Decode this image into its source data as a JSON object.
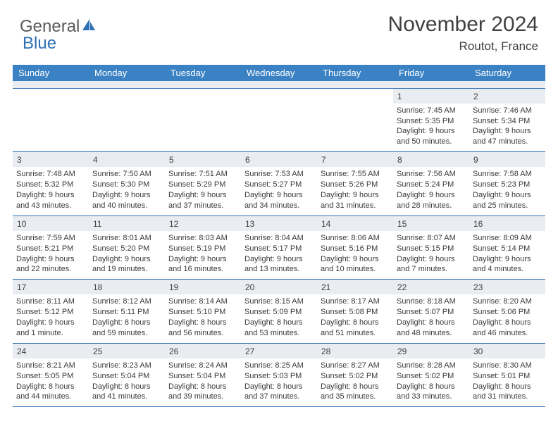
{
  "logo": {
    "text1": "General",
    "text2": "Blue"
  },
  "title": "November 2024",
  "location": "Routot, France",
  "colors": {
    "header_bg": "#3b82c4",
    "header_text": "#ffffff",
    "daynum_bg": "#e9edf1",
    "border": "#2f6fb3",
    "body_text": "#3a3a3a",
    "title_text": "#404040"
  },
  "day_names": [
    "Sunday",
    "Monday",
    "Tuesday",
    "Wednesday",
    "Thursday",
    "Friday",
    "Saturday"
  ],
  "weeks": [
    [
      {
        "n": "",
        "sunrise": "",
        "sunset": "",
        "daylight": ""
      },
      {
        "n": "",
        "sunrise": "",
        "sunset": "",
        "daylight": ""
      },
      {
        "n": "",
        "sunrise": "",
        "sunset": "",
        "daylight": ""
      },
      {
        "n": "",
        "sunrise": "",
        "sunset": "",
        "daylight": ""
      },
      {
        "n": "",
        "sunrise": "",
        "sunset": "",
        "daylight": ""
      },
      {
        "n": "1",
        "sunrise": "Sunrise: 7:45 AM",
        "sunset": "Sunset: 5:35 PM",
        "daylight": "Daylight: 9 hours and 50 minutes."
      },
      {
        "n": "2",
        "sunrise": "Sunrise: 7:46 AM",
        "sunset": "Sunset: 5:34 PM",
        "daylight": "Daylight: 9 hours and 47 minutes."
      }
    ],
    [
      {
        "n": "3",
        "sunrise": "Sunrise: 7:48 AM",
        "sunset": "Sunset: 5:32 PM",
        "daylight": "Daylight: 9 hours and 43 minutes."
      },
      {
        "n": "4",
        "sunrise": "Sunrise: 7:50 AM",
        "sunset": "Sunset: 5:30 PM",
        "daylight": "Daylight: 9 hours and 40 minutes."
      },
      {
        "n": "5",
        "sunrise": "Sunrise: 7:51 AM",
        "sunset": "Sunset: 5:29 PM",
        "daylight": "Daylight: 9 hours and 37 minutes."
      },
      {
        "n": "6",
        "sunrise": "Sunrise: 7:53 AM",
        "sunset": "Sunset: 5:27 PM",
        "daylight": "Daylight: 9 hours and 34 minutes."
      },
      {
        "n": "7",
        "sunrise": "Sunrise: 7:55 AM",
        "sunset": "Sunset: 5:26 PM",
        "daylight": "Daylight: 9 hours and 31 minutes."
      },
      {
        "n": "8",
        "sunrise": "Sunrise: 7:56 AM",
        "sunset": "Sunset: 5:24 PM",
        "daylight": "Daylight: 9 hours and 28 minutes."
      },
      {
        "n": "9",
        "sunrise": "Sunrise: 7:58 AM",
        "sunset": "Sunset: 5:23 PM",
        "daylight": "Daylight: 9 hours and 25 minutes."
      }
    ],
    [
      {
        "n": "10",
        "sunrise": "Sunrise: 7:59 AM",
        "sunset": "Sunset: 5:21 PM",
        "daylight": "Daylight: 9 hours and 22 minutes."
      },
      {
        "n": "11",
        "sunrise": "Sunrise: 8:01 AM",
        "sunset": "Sunset: 5:20 PM",
        "daylight": "Daylight: 9 hours and 19 minutes."
      },
      {
        "n": "12",
        "sunrise": "Sunrise: 8:03 AM",
        "sunset": "Sunset: 5:19 PM",
        "daylight": "Daylight: 9 hours and 16 minutes."
      },
      {
        "n": "13",
        "sunrise": "Sunrise: 8:04 AM",
        "sunset": "Sunset: 5:17 PM",
        "daylight": "Daylight: 9 hours and 13 minutes."
      },
      {
        "n": "14",
        "sunrise": "Sunrise: 8:06 AM",
        "sunset": "Sunset: 5:16 PM",
        "daylight": "Daylight: 9 hours and 10 minutes."
      },
      {
        "n": "15",
        "sunrise": "Sunrise: 8:07 AM",
        "sunset": "Sunset: 5:15 PM",
        "daylight": "Daylight: 9 hours and 7 minutes."
      },
      {
        "n": "16",
        "sunrise": "Sunrise: 8:09 AM",
        "sunset": "Sunset: 5:14 PM",
        "daylight": "Daylight: 9 hours and 4 minutes."
      }
    ],
    [
      {
        "n": "17",
        "sunrise": "Sunrise: 8:11 AM",
        "sunset": "Sunset: 5:12 PM",
        "daylight": "Daylight: 9 hours and 1 minute."
      },
      {
        "n": "18",
        "sunrise": "Sunrise: 8:12 AM",
        "sunset": "Sunset: 5:11 PM",
        "daylight": "Daylight: 8 hours and 59 minutes."
      },
      {
        "n": "19",
        "sunrise": "Sunrise: 8:14 AM",
        "sunset": "Sunset: 5:10 PM",
        "daylight": "Daylight: 8 hours and 56 minutes."
      },
      {
        "n": "20",
        "sunrise": "Sunrise: 8:15 AM",
        "sunset": "Sunset: 5:09 PM",
        "daylight": "Daylight: 8 hours and 53 minutes."
      },
      {
        "n": "21",
        "sunrise": "Sunrise: 8:17 AM",
        "sunset": "Sunset: 5:08 PM",
        "daylight": "Daylight: 8 hours and 51 minutes."
      },
      {
        "n": "22",
        "sunrise": "Sunrise: 8:18 AM",
        "sunset": "Sunset: 5:07 PM",
        "daylight": "Daylight: 8 hours and 48 minutes."
      },
      {
        "n": "23",
        "sunrise": "Sunrise: 8:20 AM",
        "sunset": "Sunset: 5:06 PM",
        "daylight": "Daylight: 8 hours and 46 minutes."
      }
    ],
    [
      {
        "n": "24",
        "sunrise": "Sunrise: 8:21 AM",
        "sunset": "Sunset: 5:05 PM",
        "daylight": "Daylight: 8 hours and 44 minutes."
      },
      {
        "n": "25",
        "sunrise": "Sunrise: 8:23 AM",
        "sunset": "Sunset: 5:04 PM",
        "daylight": "Daylight: 8 hours and 41 minutes."
      },
      {
        "n": "26",
        "sunrise": "Sunrise: 8:24 AM",
        "sunset": "Sunset: 5:04 PM",
        "daylight": "Daylight: 8 hours and 39 minutes."
      },
      {
        "n": "27",
        "sunrise": "Sunrise: 8:25 AM",
        "sunset": "Sunset: 5:03 PM",
        "daylight": "Daylight: 8 hours and 37 minutes."
      },
      {
        "n": "28",
        "sunrise": "Sunrise: 8:27 AM",
        "sunset": "Sunset: 5:02 PM",
        "daylight": "Daylight: 8 hours and 35 minutes."
      },
      {
        "n": "29",
        "sunrise": "Sunrise: 8:28 AM",
        "sunset": "Sunset: 5:02 PM",
        "daylight": "Daylight: 8 hours and 33 minutes."
      },
      {
        "n": "30",
        "sunrise": "Sunrise: 8:30 AM",
        "sunset": "Sunset: 5:01 PM",
        "daylight": "Daylight: 8 hours and 31 minutes."
      }
    ]
  ]
}
